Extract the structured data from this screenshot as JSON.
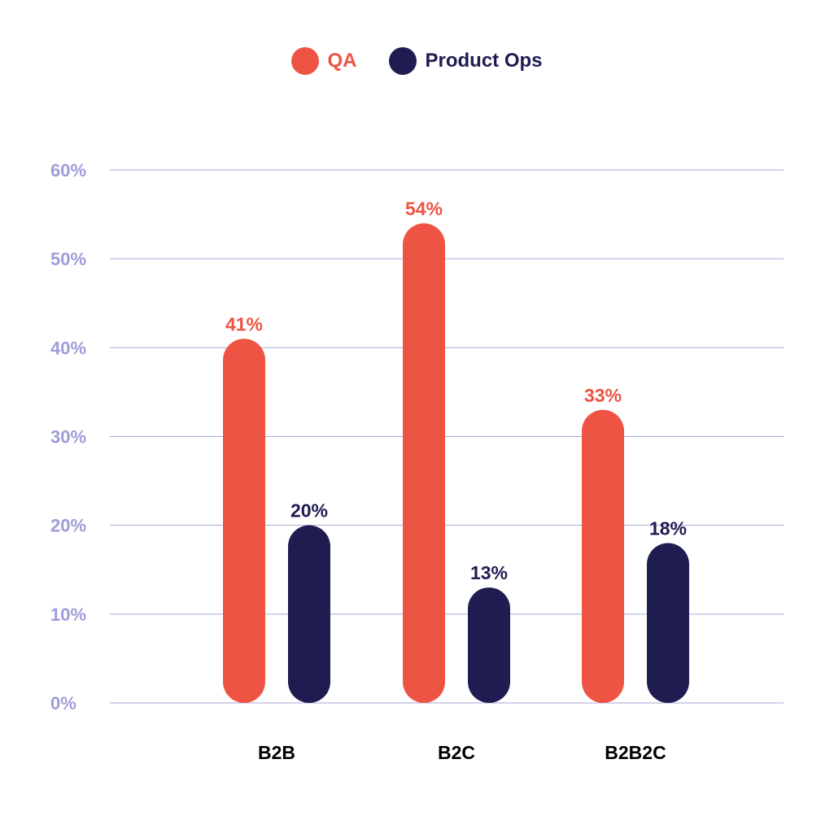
{
  "chart_data": {
    "type": "bar",
    "categories": [
      "B2B",
      "B2C",
      "B2B2C"
    ],
    "series": [
      {
        "name": "QA",
        "values": [
          41,
          54,
          33
        ],
        "color": "#ee5443"
      },
      {
        "name": "Product Ops",
        "values": [
          20,
          13,
          18
        ],
        "color": "#1f1c52"
      }
    ],
    "yticks": [
      "0%",
      "10%",
      "20%",
      "30%",
      "40%",
      "50%",
      "60%"
    ],
    "ylim": [
      0,
      60
    ],
    "value_suffix": "%",
    "grid": true,
    "legend_position": "top-center",
    "colors": {
      "grid": "#a9a7d6",
      "tick": "#9e9cd9"
    }
  }
}
